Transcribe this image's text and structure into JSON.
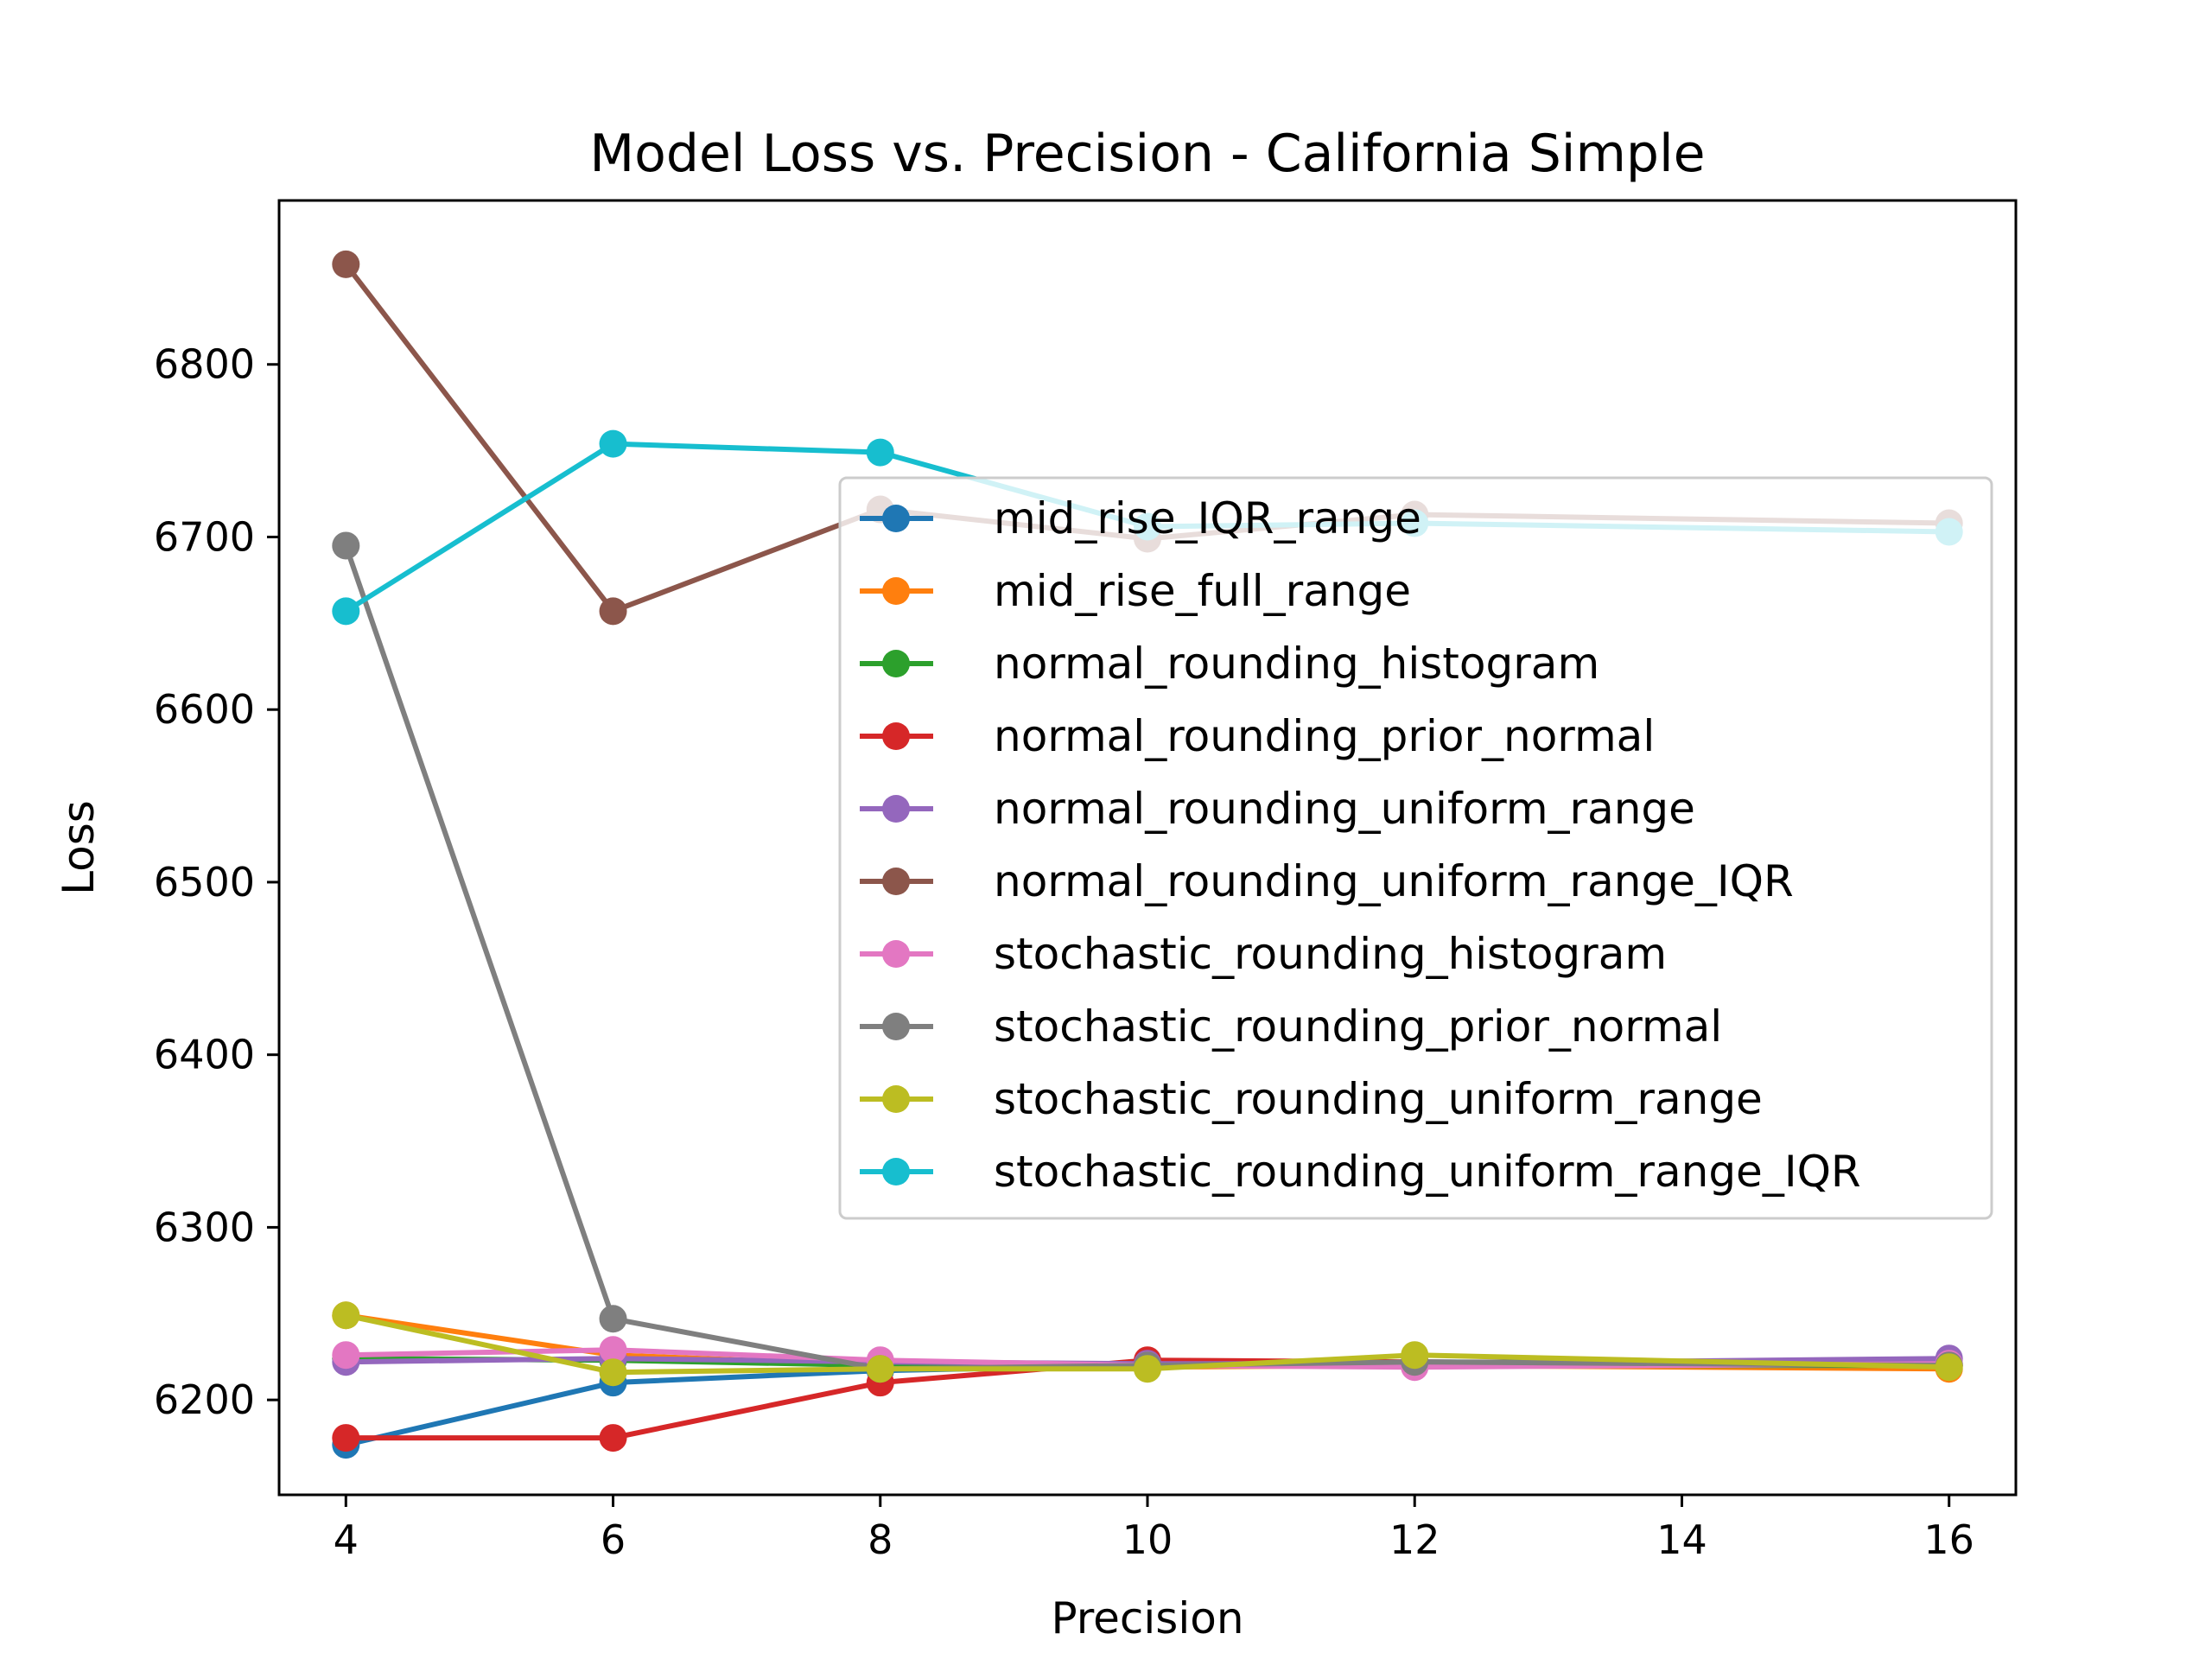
{
  "chart_data": {
    "type": "line",
    "title": "Model Loss vs. Precision - California Simple",
    "xlabel": "Precision",
    "ylabel": "Loss",
    "x": [
      4,
      6,
      8,
      10,
      12,
      16
    ],
    "xlim": [
      3.5,
      16.5
    ],
    "ylim": [
      6145,
      6895
    ],
    "xticks": [
      4,
      6,
      8,
      10,
      12,
      14,
      16
    ],
    "yticks": [
      6200,
      6300,
      6400,
      6500,
      6600,
      6700,
      6800
    ],
    "grid": false,
    "legend_position": "center-right",
    "series": [
      {
        "name": "mid_rise_IQR_range",
        "color": "#1f77b4",
        "values": [
          6174,
          6210,
          6217,
          6220,
          6222,
          6221
        ]
      },
      {
        "name": "mid_rise_full_range",
        "color": "#ff7f0e",
        "values": [
          6249,
          6226,
          6220,
          6219,
          6220,
          6218
        ]
      },
      {
        "name": "normal_rounding_histogram",
        "color": "#2ca02c",
        "values": [
          6224,
          6223,
          6220,
          6221,
          6220,
          6220
        ]
      },
      {
        "name": "normal_rounding_prior_normal",
        "color": "#d62728",
        "values": [
          6178,
          6178,
          6210,
          6223,
          6222,
          6220
        ]
      },
      {
        "name": "normal_rounding_uniform_range",
        "color": "#9467bd",
        "values": [
          6222,
          6224,
          6222,
          6221,
          6221,
          6224
        ]
      },
      {
        "name": "normal_rounding_uniform_range_IQR",
        "color": "#8c564b",
        "values": [
          6858,
          6657,
          6716,
          6699,
          6713,
          6708
        ]
      },
      {
        "name": "stochastic_rounding_histogram",
        "color": "#e377c2",
        "values": [
          6226,
          6229,
          6223,
          6220,
          6219,
          6221
        ]
      },
      {
        "name": "stochastic_rounding_prior_normal",
        "color": "#7f7f7f",
        "values": [
          6695,
          6247,
          6218,
          6220,
          6222,
          6220
        ]
      },
      {
        "name": "stochastic_rounding_uniform_range",
        "color": "#bcbd22",
        "values": [
          6249,
          6216,
          6218,
          6218,
          6226,
          6219
        ]
      },
      {
        "name": "stochastic_rounding_uniform_range_IQR",
        "color": "#17becf",
        "values": [
          6657,
          6754,
          6749,
          6706,
          6708,
          6703
        ]
      }
    ]
  }
}
